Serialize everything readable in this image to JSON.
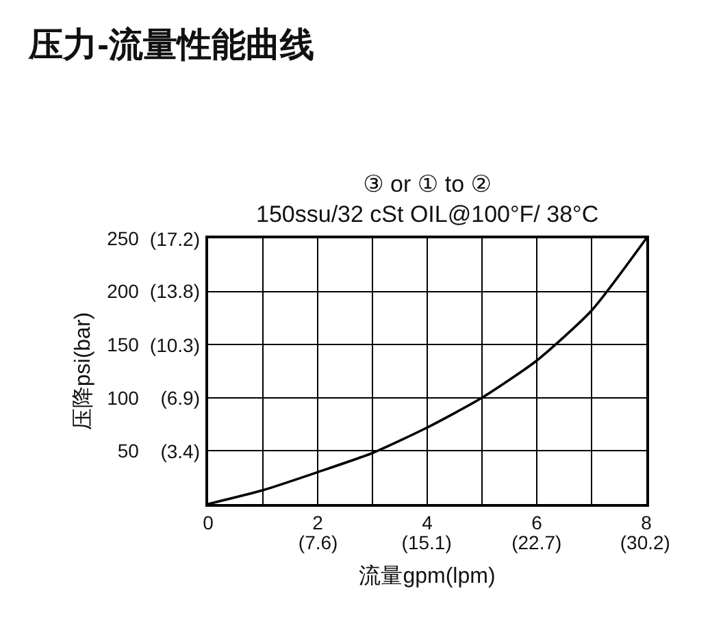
{
  "chart_data": {
    "type": "line",
    "title": "压力-流量性能曲线",
    "subtitle": "③ or ① to ②\n150ssu/32 cSt OIL@100°F/ 38°C",
    "xlabel": "流量gpm(lpm)",
    "ylabel": "压降psi(bar)",
    "x": [
      0,
      1,
      2,
      3,
      4,
      5,
      6,
      7,
      8
    ],
    "series": [
      {
        "color": "#000000",
        "values": [
          0,
          13,
          30,
          48,
          72,
          100,
          135,
          182,
          250
        ]
      }
    ],
    "xlim": [
      0,
      8
    ],
    "xticks": [
      0,
      {
        "value": 1,
        "label": null
      },
      2,
      {
        "value": 3,
        "label": null
      },
      4,
      {
        "value": 5,
        "label": null
      },
      6,
      {
        "value": 7,
        "label": null
      },
      8
    ],
    "x2lim": [
      0,
      30.28
    ],
    "x2ticks": [
      {
        "value": 7.6,
        "label": "(7.6)"
      },
      {
        "value": 15.1,
        "label": "(15.1)"
      },
      {
        "value": 22.7,
        "label": "(22.7)"
      },
      {
        "value": 30.2,
        "label": "(30.2)"
      }
    ],
    "ylim": [
      0,
      250
    ],
    "yticks": [
      50,
      100,
      150,
      200,
      250
    ],
    "y2lim": [
      0,
      17.24
    ],
    "y2ticks": [
      {
        "value": 3.4,
        "label": "(3.4)"
      },
      {
        "value": 6.9,
        "label": "(6.9)"
      },
      {
        "value": 10.3,
        "label": "(10.3)"
      },
      {
        "value": 13.8,
        "label": "(13.8)"
      },
      {
        "value": 17.2,
        "label": "(17.2)"
      }
    ],
    "grid": true,
    "marker": "none",
    "line_style": "solid"
  }
}
